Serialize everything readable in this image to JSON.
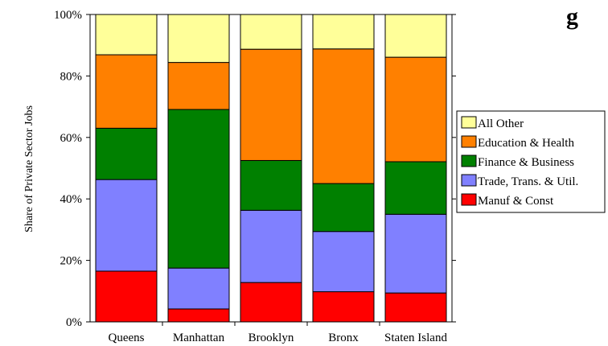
{
  "chart_data": {
    "type": "bar",
    "stacked": true,
    "title": "",
    "title_fragment": "g",
    "xlabel": "",
    "ylabel": "Share of Private Sector Jobs",
    "ylim": [
      0,
      100
    ],
    "y_ticks": [
      "0%",
      "20%",
      "40%",
      "60%",
      "80%",
      "100%"
    ],
    "y_tick_values": [
      0,
      20,
      40,
      60,
      80,
      100
    ],
    "categories": [
      "Queens",
      "Manhattan",
      "Brooklyn",
      "Bronx",
      "Staten Island"
    ],
    "series": [
      {
        "name": "Manuf & Const",
        "color": "#ff0000",
        "values": [
          16.5,
          4.2,
          12.8,
          9.8,
          9.4
        ]
      },
      {
        "name": "Trade, Trans. & Util.",
        "color": "#8080ff",
        "values": [
          29.8,
          13.3,
          23.5,
          19.6,
          25.6
        ]
      },
      {
        "name": "Finance & Business",
        "color": "#008000",
        "values": [
          16.7,
          51.6,
          16.2,
          15.6,
          17.1
        ]
      },
      {
        "name": "Education & Health",
        "color": "#ff8000",
        "values": [
          23.9,
          15.3,
          36.2,
          43.8,
          34.0
        ]
      },
      {
        "name": "All Other",
        "color": "#ffff99",
        "values": [
          13.1,
          15.6,
          11.3,
          11.2,
          13.9
        ]
      }
    ],
    "grid": false,
    "legend_position": "right",
    "legend_order": [
      "All Other",
      "Education & Health",
      "Finance & Business",
      "Trade, Trans. & Util.",
      "Manuf & Const"
    ]
  }
}
